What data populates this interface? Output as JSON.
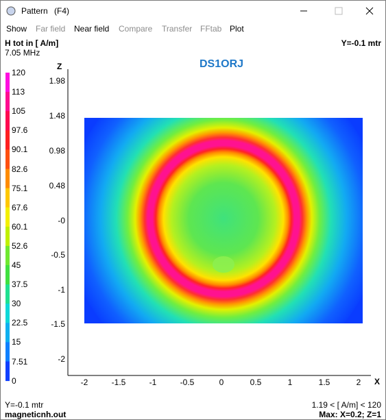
{
  "window": {
    "title": "Pattern",
    "hotkey": "(F4)"
  },
  "menu": [
    "Show",
    "Far field",
    "Near field",
    "Compare",
    "Transfer",
    "FFtab",
    "Plot"
  ],
  "header": {
    "quantity": "H tot in [ A/m]",
    "frequency": "7.05 MHz",
    "plane": "Y=-0.1 mtr"
  },
  "plot": {
    "title": "DS1ORJ",
    "y_axis_label": "Z",
    "x_axis_label": "X",
    "y_ticks": [
      "1.98",
      "1.48",
      "0.98",
      "0.48",
      "-0",
      "-0.5",
      "-1",
      "-1.5",
      "-2"
    ],
    "x_ticks": [
      "-2",
      "-1.5",
      "-1",
      "-0.5",
      "0",
      "0.5",
      "1",
      "1.5",
      "2"
    ]
  },
  "legend": [
    "120",
    "113",
    "105",
    "97.6",
    "90.1",
    "82.6",
    "75.1",
    "67.6",
    "60.1",
    "52.6",
    "45",
    "37.5",
    "30",
    "22.5",
    "15",
    "7.51",
    "0"
  ],
  "footer": {
    "plane": "Y=-0.1 mtr",
    "file": "magneticnh.out",
    "range": "1.19 < [ A/m] < 120",
    "max": "Max: X=0.2; Z=1"
  }
}
